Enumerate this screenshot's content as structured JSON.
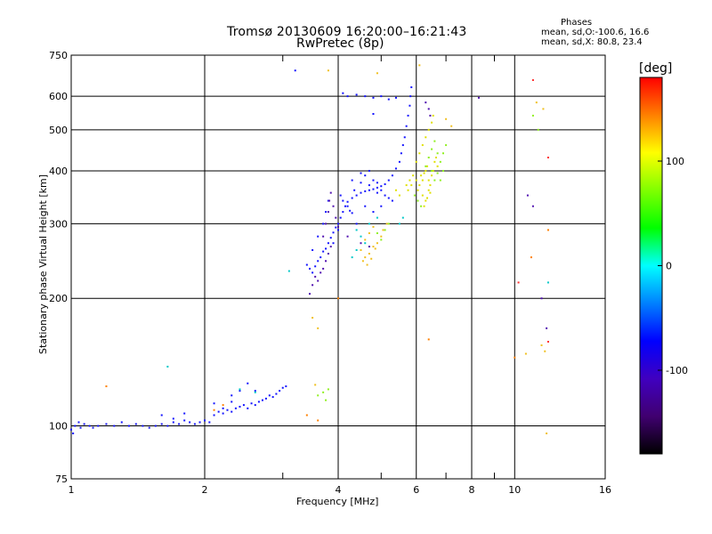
{
  "chart_data": {
    "type": "scatter",
    "title": "Tromsø 20130609 16:20:00–16:21:43",
    "subtitle": "RwPretec (8p)",
    "xlabel": "Frequency [MHz]",
    "ylabel": "Stationary phase Virtual Height [km]",
    "x_scale": "log",
    "y_scale": "log",
    "xlim": [
      1,
      16
    ],
    "ylim": [
      75,
      750
    ],
    "x_ticks": [
      1,
      2,
      4,
      6,
      8,
      10,
      16
    ],
    "x_grid": [
      1,
      2,
      4,
      6,
      8,
      10,
      16
    ],
    "x_minor": [
      3,
      5,
      7,
      9
    ],
    "y_ticks": [
      75,
      100,
      200,
      300,
      400,
      500,
      600,
      750
    ],
    "grid": true,
    "phases": {
      "title": "Phases",
      "line_o": "mean, sd,O:-100.6, 16.6",
      "line_x": "mean, sd,X: 80.8, 23.4"
    },
    "colorbar": {
      "unit": "[deg]",
      "ticks": [
        100,
        0,
        -100
      ],
      "range": [
        -180,
        180
      ],
      "colors": [
        "#ff0000",
        "#ff8000",
        "#ffff00",
        "#80ff00",
        "#00ff00",
        "#00ffff",
        "#0080ff",
        "#0000ff",
        "#4000c0",
        "#400070",
        "#000000"
      ]
    },
    "series": [
      {
        "color": "#1414ff",
        "points": [
          [
            1.0,
            98
          ],
          [
            1.01,
            96
          ],
          [
            1.02,
            100
          ],
          [
            1.04,
            102
          ],
          [
            1.05,
            99
          ],
          [
            1.07,
            101
          ],
          [
            1.1,
            100
          ],
          [
            1.12,
            99
          ],
          [
            1.15,
            100
          ],
          [
            1.2,
            101
          ],
          [
            1.25,
            100
          ],
          [
            1.3,
            102
          ],
          [
            1.35,
            100
          ],
          [
            1.4,
            101
          ],
          [
            1.45,
            100
          ],
          [
            1.5,
            99
          ],
          [
            1.55,
            100
          ],
          [
            1.6,
            101
          ],
          [
            1.65,
            100
          ],
          [
            1.7,
            102
          ],
          [
            1.75,
            101
          ],
          [
            1.8,
            103
          ],
          [
            1.85,
            102
          ],
          [
            1.9,
            101
          ],
          [
            1.95,
            102
          ],
          [
            2.0,
            103
          ],
          [
            2.05,
            102
          ],
          [
            2.1,
            106
          ],
          [
            2.15,
            108
          ],
          [
            2.2,
            107
          ],
          [
            2.25,
            109
          ],
          [
            2.3,
            108
          ],
          [
            2.35,
            110
          ],
          [
            2.4,
            111
          ],
          [
            2.45,
            112
          ],
          [
            2.5,
            110
          ],
          [
            2.55,
            113
          ],
          [
            2.6,
            112
          ],
          [
            2.65,
            114
          ],
          [
            2.7,
            115
          ],
          [
            2.75,
            116
          ],
          [
            2.8,
            118
          ],
          [
            2.85,
            117
          ],
          [
            2.9,
            119
          ],
          [
            2.95,
            121
          ],
          [
            3.0,
            123
          ],
          [
            3.05,
            124
          ],
          [
            2.3,
            118
          ],
          [
            2.4,
            121
          ],
          [
            2.5,
            126
          ],
          [
            2.6,
            121
          ],
          [
            1.6,
            106
          ],
          [
            1.7,
            104
          ],
          [
            1.8,
            107
          ],
          [
            2.1,
            113
          ],
          [
            2.2,
            110
          ],
          [
            2.3,
            114
          ],
          [
            3.4,
            240
          ],
          [
            3.45,
            235
          ],
          [
            3.5,
            230
          ],
          [
            3.55,
            238
          ],
          [
            3.6,
            245
          ],
          [
            3.65,
            250
          ],
          [
            3.7,
            258
          ],
          [
            3.75,
            262
          ],
          [
            3.8,
            270
          ],
          [
            3.85,
            278
          ],
          [
            3.9,
            286
          ],
          [
            3.95,
            294
          ],
          [
            4.0,
            300
          ],
          [
            4.05,
            310
          ],
          [
            4.1,
            320
          ],
          [
            4.15,
            330
          ],
          [
            4.2,
            338
          ],
          [
            4.3,
            345
          ],
          [
            4.4,
            350
          ],
          [
            4.5,
            355
          ],
          [
            4.6,
            358
          ],
          [
            4.7,
            360
          ],
          [
            4.8,
            362
          ],
          [
            4.9,
            365
          ],
          [
            5.0,
            368
          ],
          [
            5.1,
            372
          ],
          [
            5.2,
            380
          ],
          [
            5.3,
            390
          ],
          [
            5.4,
            405
          ],
          [
            5.5,
            420
          ],
          [
            5.55,
            440
          ],
          [
            5.6,
            460
          ],
          [
            5.65,
            480
          ],
          [
            5.7,
            510
          ],
          [
            5.75,
            540
          ],
          [
            5.8,
            570
          ],
          [
            5.82,
            600
          ],
          [
            5.85,
            630
          ],
          [
            4.05,
            350
          ],
          [
            4.2,
            330
          ],
          [
            4.35,
            360
          ],
          [
            4.5,
            375
          ],
          [
            4.6,
            390
          ],
          [
            4.7,
            400
          ],
          [
            4.8,
            380
          ],
          [
            4.9,
            375
          ],
          [
            5.0,
            360
          ],
          [
            5.1,
            350
          ],
          [
            5.2,
            345
          ],
          [
            5.3,
            340
          ],
          [
            4.4,
            300
          ],
          [
            4.6,
            330
          ],
          [
            4.8,
            320
          ],
          [
            5.0,
            330
          ],
          [
            3.5,
            260
          ],
          [
            3.6,
            280
          ],
          [
            3.7,
            300
          ],
          [
            3.75,
            320
          ],
          [
            3.8,
            340
          ],
          [
            4.0,
            290
          ],
          [
            3.9,
            270
          ],
          [
            4.1,
            340
          ],
          [
            4.3,
            380
          ],
          [
            4.5,
            395
          ],
          [
            4.7,
            370
          ],
          [
            4.9,
            355
          ],
          [
            4.3,
            318
          ],
          [
            4.25,
            322
          ],
          [
            4.1,
            610
          ],
          [
            4.2,
            600
          ],
          [
            4.4,
            605
          ],
          [
            4.6,
            600
          ],
          [
            4.8,
            595
          ],
          [
            5.0,
            600
          ],
          [
            5.2,
            590
          ],
          [
            5.4,
            595
          ],
          [
            3.2,
            690
          ],
          [
            4.8,
            545
          ]
        ]
      },
      {
        "color": "#5010b0",
        "points": [
          [
            3.45,
            205
          ],
          [
            3.5,
            215
          ],
          [
            3.55,
            225
          ],
          [
            3.6,
            220
          ],
          [
            3.65,
            230
          ],
          [
            3.7,
            235
          ],
          [
            3.75,
            245
          ],
          [
            3.8,
            255
          ],
          [
            3.85,
            265
          ],
          [
            3.7,
            280
          ],
          [
            3.75,
            300
          ],
          [
            3.8,
            320
          ],
          [
            3.82,
            340
          ],
          [
            3.85,
            355
          ],
          [
            3.9,
            330
          ],
          [
            3.95,
            310
          ],
          [
            4.0,
            295
          ],
          [
            4.2,
            280
          ],
          [
            4.5,
            270
          ],
          [
            4.7,
            265
          ],
          [
            6.3,
            580
          ],
          [
            6.4,
            560
          ],
          [
            6.45,
            540
          ],
          [
            8.3,
            595
          ],
          [
            10.7,
            350
          ],
          [
            11.0,
            330
          ],
          [
            11.5,
            200
          ],
          [
            11.8,
            170
          ]
        ]
      },
      {
        "color": "#e0e000",
        "points": [
          [
            6.0,
            380
          ],
          [
            6.05,
            360
          ],
          [
            6.1,
            370
          ],
          [
            6.15,
            390
          ],
          [
            6.2,
            380
          ],
          [
            6.25,
            395
          ],
          [
            6.3,
            400
          ],
          [
            6.35,
            410
          ],
          [
            6.4,
            380
          ],
          [
            6.45,
            370
          ],
          [
            6.5,
            390
          ],
          [
            6.55,
            400
          ],
          [
            6.6,
            420
          ],
          [
            6.65,
            430
          ],
          [
            6.7,
            410
          ],
          [
            6.2,
            350
          ],
          [
            6.3,
            340
          ],
          [
            6.4,
            360
          ],
          [
            6.0,
            420
          ],
          [
            6.1,
            440
          ],
          [
            6.2,
            460
          ],
          [
            6.3,
            480
          ],
          [
            6.4,
            500
          ],
          [
            6.5,
            520
          ],
          [
            6.55,
            540
          ],
          [
            5.7,
            370
          ],
          [
            5.75,
            360
          ],
          [
            5.8,
            380
          ],
          [
            5.85,
            370
          ],
          [
            5.9,
            390
          ],
          [
            5.5,
            350
          ],
          [
            5.4,
            360
          ],
          [
            6.25,
            330
          ],
          [
            6.35,
            345
          ],
          [
            6.45,
            355
          ]
        ]
      },
      {
        "color": "#90f020",
        "points": [
          [
            6.3,
            410
          ],
          [
            6.4,
            430
          ],
          [
            6.5,
            450
          ],
          [
            6.6,
            470
          ],
          [
            6.7,
            440
          ],
          [
            6.5,
            400
          ],
          [
            6.6,
            380
          ],
          [
            6.7,
            395
          ],
          [
            6.8,
            420
          ],
          [
            6.9,
            440
          ],
          [
            7.0,
            460
          ],
          [
            6.8,
            380
          ],
          [
            6.9,
            400
          ],
          [
            5.95,
            350
          ],
          [
            6.05,
            340
          ],
          [
            6.15,
            330
          ],
          [
            4.9,
            285
          ],
          [
            5.0,
            275
          ],
          [
            5.1,
            290
          ],
          [
            5.2,
            300
          ],
          [
            3.6,
            118
          ],
          [
            3.7,
            120
          ],
          [
            3.8,
            122
          ],
          [
            3.75,
            115
          ],
          [
            11.0,
            540
          ],
          [
            11.3,
            500
          ]
        ]
      },
      {
        "color": "#f0c020",
        "points": [
          [
            4.5,
            260
          ],
          [
            4.6,
            250
          ],
          [
            4.7,
            255
          ],
          [
            4.8,
            265
          ],
          [
            4.9,
            270
          ],
          [
            5.0,
            280
          ],
          [
            4.55,
            245
          ],
          [
            4.65,
            240
          ],
          [
            4.75,
            248
          ],
          [
            4.85,
            262
          ],
          [
            5.05,
            290
          ],
          [
            5.15,
            300
          ],
          [
            4.6,
            275
          ],
          [
            4.7,
            285
          ],
          [
            4.8,
            295
          ],
          [
            3.5,
            180
          ],
          [
            3.6,
            170
          ],
          [
            3.55,
            125
          ],
          [
            3.8,
            690
          ],
          [
            4.9,
            680
          ],
          [
            6.1,
            710
          ],
          [
            7.0,
            530
          ],
          [
            7.2,
            510
          ],
          [
            11.5,
            155
          ],
          [
            11.7,
            150
          ],
          [
            11.2,
            580
          ],
          [
            11.6,
            560
          ],
          [
            10.6,
            148
          ],
          [
            11.8,
            96
          ]
        ]
      },
      {
        "color": "#00c8c8",
        "points": [
          [
            4.3,
            250
          ],
          [
            4.4,
            260
          ],
          [
            4.5,
            280
          ],
          [
            4.6,
            270
          ],
          [
            4.4,
            290
          ],
          [
            4.7,
            300
          ],
          [
            4.9,
            310
          ],
          [
            5.5,
            300
          ],
          [
            5.6,
            310
          ],
          [
            1.65,
            138
          ],
          [
            2.4,
            122
          ],
          [
            2.6,
            120
          ],
          [
            3.1,
            232
          ],
          [
            11.9,
            218
          ]
        ]
      },
      {
        "color": "#ff3030",
        "points": [
          [
            11.0,
            655
          ],
          [
            11.9,
            158
          ],
          [
            10.2,
            218
          ],
          [
            11.9,
            430
          ]
        ]
      },
      {
        "color": "#ff8000",
        "points": [
          [
            1.2,
            124
          ],
          [
            2.1,
            109
          ],
          [
            2.2,
            112
          ],
          [
            3.4,
            106
          ],
          [
            3.6,
            103
          ],
          [
            4.0,
            200
          ],
          [
            6.4,
            160
          ],
          [
            10.0,
            145
          ],
          [
            10.9,
            250
          ],
          [
            11.9,
            290
          ]
        ]
      }
    ]
  }
}
